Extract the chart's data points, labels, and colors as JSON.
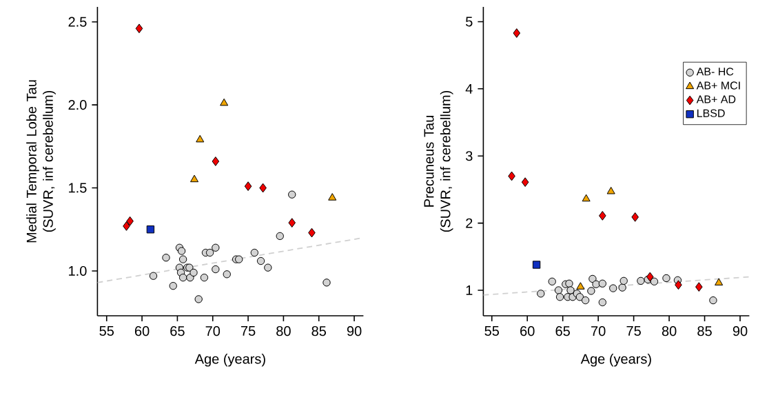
{
  "chart_data": [
    {
      "type": "scatter",
      "xlabel": "Age (years)",
      "ylabel": "Medial Temporal Lobe Tau (SUVR, inf cerebellum)",
      "xlim": [
        53.7,
        91.3
      ],
      "ylim": [
        0.73,
        2.59
      ],
      "xticks": [
        55,
        60,
        65,
        70,
        75,
        80,
        85,
        90
      ],
      "yticks": [
        {
          "value": 1,
          "label": "1.0"
        },
        {
          "value": 1.5,
          "label": "1.5"
        },
        {
          "value": 2,
          "label": "2.0"
        },
        {
          "value": 2.5,
          "label": "2.5"
        }
      ],
      "grid": false,
      "legend": false,
      "series": [
        {
          "type": "line",
          "color": "#d0d0d0",
          "line_style": "dashed",
          "marker": "none",
          "x": [
            53.7,
            91.3
          ],
          "values": [
            0.93,
            1.2
          ]
        },
        {
          "marker": "circle",
          "color": "#d3d3d3",
          "x": [
            61.6,
            63.4,
            64.4,
            65.3,
            65.6,
            65.8,
            65.3,
            65.5,
            65.8,
            66.4,
            66.7,
            66.8,
            67.3,
            68.0,
            68.8,
            69.0,
            69.6,
            70.4,
            70.4,
            72.0,
            73.3,
            73.7,
            75.9,
            76.8,
            77.8,
            79.5,
            81.2,
            86.1
          ],
          "values": [
            0.97,
            1.08,
            0.91,
            1.14,
            1.12,
            1.07,
            1.02,
            0.99,
            0.96,
            1.02,
            1.02,
            0.96,
            0.99,
            0.83,
            0.96,
            1.11,
            1.11,
            1.14,
            1.01,
            0.98,
            1.07,
            1.07,
            1.11,
            1.06,
            1.02,
            1.21,
            1.46,
            0.93
          ]
        },
        {
          "marker": "triangle",
          "color": "#f0a500",
          "x": [
            67.4,
            68.2,
            71.6,
            86.9
          ],
          "values": [
            1.55,
            1.79,
            2.01,
            1.44
          ]
        },
        {
          "marker": "diamond",
          "color": "#ee0000",
          "x": [
            57.8,
            58.3,
            59.6,
            70.4,
            75.0,
            77.1,
            81.2,
            84.0
          ],
          "values": [
            1.27,
            1.3,
            2.46,
            1.66,
            1.51,
            1.5,
            1.29,
            1.23
          ]
        },
        {
          "marker": "square",
          "color": "#1030c0",
          "x": [
            61.2
          ],
          "values": [
            1.25
          ]
        }
      ]
    },
    {
      "type": "scatter",
      "xlabel": "Age (years)",
      "ylabel": "Precuneus Tau (SUVR, inf cerebellum)",
      "xlim": [
        53.8,
        91.3
      ],
      "ylim": [
        0.62,
        5.22
      ],
      "xticks": [
        55,
        60,
        65,
        70,
        75,
        80,
        85,
        90
      ],
      "yticks": [
        1,
        2,
        3,
        4,
        5
      ],
      "grid": false,
      "legend": "right",
      "series": [
        {
          "type": "line",
          "color": "#d0d0d0",
          "line_style": "dashed",
          "marker": "none",
          "x": [
            53.8,
            91.3
          ],
          "values": [
            0.93,
            1.2
          ]
        },
        {
          "name": "AB- HC",
          "marker": "circle",
          "color": "#d3d3d3",
          "x": [
            61.9,
            63.5,
            64.4,
            64.6,
            65.4,
            65.9,
            65.7,
            66.1,
            66.4,
            67.0,
            67.4,
            68.2,
            69.0,
            69.2,
            69.7,
            70.6,
            70.6,
            72.1,
            73.4,
            73.6,
            76.0,
            77.0,
            77.9,
            79.6,
            81.2,
            86.2
          ],
          "values": [
            0.95,
            1.13,
            1.0,
            0.9,
            1.09,
            1.1,
            0.9,
            1.0,
            0.9,
            0.95,
            0.9,
            0.85,
            0.99,
            1.17,
            1.09,
            1.1,
            0.82,
            1.03,
            1.04,
            1.14,
            1.14,
            1.16,
            1.13,
            1.18,
            1.15,
            0.85
          ]
        },
        {
          "name": "AB+ MCI",
          "marker": "triangle",
          "color": "#f0a500",
          "x": [
            68.3,
            71.8,
            67.5,
            87.0
          ],
          "values": [
            2.36,
            2.47,
            1.05,
            1.11
          ]
        },
        {
          "name": "AB+ AD",
          "marker": "diamond",
          "color": "#ee0000",
          "x": [
            58.5,
            57.8,
            59.7,
            70.6,
            75.2,
            77.3,
            81.3,
            84.2
          ],
          "values": [
            4.83,
            2.7,
            2.61,
            2.11,
            2.09,
            1.2,
            1.08,
            1.05
          ]
        },
        {
          "name": "LBSD",
          "marker": "square",
          "color": "#1030c0",
          "x": [
            61.3
          ],
          "values": [
            1.38
          ]
        }
      ]
    }
  ]
}
